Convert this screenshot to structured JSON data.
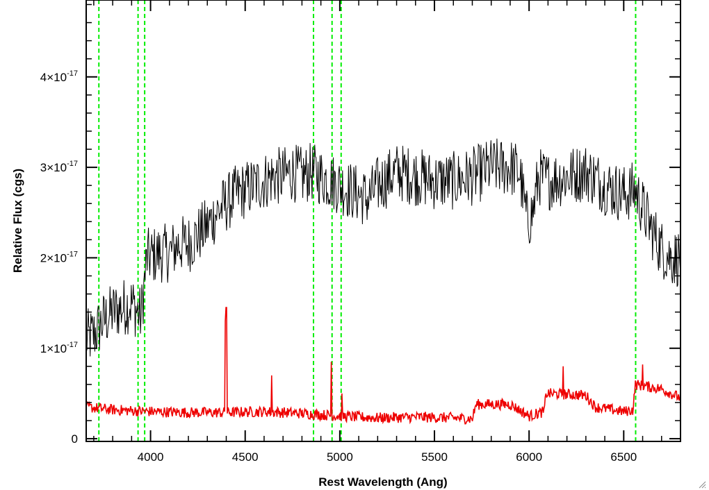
{
  "chart_data": {
    "type": "line",
    "title": "",
    "xlabel": "Rest Wavelength (Ang)",
    "ylabel": "Relative Flux (cgs)",
    "xlim": [
      3660,
      6800
    ],
    "ylim": [
      -0.03,
      4.85
    ],
    "y_unit_note": "values in units of 1e-17",
    "x_ticks": [
      4000,
      4500,
      5000,
      5500,
      6000,
      6500
    ],
    "x_tick_labels": [
      "4000",
      "4500",
      "5000",
      "5500",
      "6000",
      "6500"
    ],
    "y_ticks": [
      0,
      1,
      2,
      3,
      4
    ],
    "y_tick_labels": [
      {
        "base": "0",
        "exp": ""
      },
      {
        "base": "1×10",
        "exp": "-17"
      },
      {
        "base": "2×10",
        "exp": "-17"
      },
      {
        "base": "3×10",
        "exp": "-17"
      },
      {
        "base": "4×10",
        "exp": "-17"
      }
    ],
    "grid": false,
    "reference_lines": {
      "color": "#00ee00",
      "style": "dashed",
      "x": [
        3727,
        3934,
        3969,
        4861,
        4959,
        5007,
        6563
      ]
    },
    "series": [
      {
        "color": "#000000",
        "points": [
          [
            3660,
            1.1
          ],
          [
            3700,
            1.15
          ],
          [
            3750,
            1.3
          ],
          [
            3800,
            1.4
          ],
          [
            3850,
            1.45
          ],
          [
            3900,
            1.5
          ],
          [
            3950,
            1.35
          ],
          [
            3980,
            2.0
          ],
          [
            4050,
            2.05
          ],
          [
            4100,
            2.05
          ],
          [
            4150,
            2.15
          ],
          [
            4200,
            2.15
          ],
          [
            4250,
            2.25
          ],
          [
            4300,
            2.35
          ],
          [
            4350,
            2.5
          ],
          [
            4400,
            2.6
          ],
          [
            4450,
            2.7
          ],
          [
            4500,
            2.75
          ],
          [
            4550,
            2.8
          ],
          [
            4600,
            2.85
          ],
          [
            4650,
            2.9
          ],
          [
            4700,
            2.9
          ],
          [
            4750,
            2.95
          ],
          [
            4800,
            2.9
          ],
          [
            4850,
            2.95
          ],
          [
            4900,
            2.9
          ],
          [
            4950,
            2.85
          ],
          [
            5000,
            2.8
          ],
          [
            5050,
            2.75
          ],
          [
            5100,
            2.7
          ],
          [
            5150,
            2.65
          ],
          [
            5200,
            2.8
          ],
          [
            5300,
            2.95
          ],
          [
            5400,
            2.9
          ],
          [
            5500,
            2.85
          ],
          [
            5600,
            2.85
          ],
          [
            5700,
            2.9
          ],
          [
            5800,
            3.0
          ],
          [
            5900,
            3.0
          ],
          [
            5950,
            2.95
          ],
          [
            5990,
            2.4
          ],
          [
            6020,
            2.5
          ],
          [
            6050,
            2.9
          ],
          [
            6100,
            2.85
          ],
          [
            6200,
            2.9
          ],
          [
            6300,
            2.95
          ],
          [
            6400,
            2.8
          ],
          [
            6500,
            2.7
          ],
          [
            6560,
            2.75
          ],
          [
            6600,
            2.55
          ],
          [
            6650,
            2.3
          ],
          [
            6700,
            2.1
          ],
          [
            6750,
            2.0
          ],
          [
            6800,
            2.0
          ]
        ],
        "noise": 0.33
      },
      {
        "color": "#ee0000",
        "points": [
          [
            3660,
            0.35
          ],
          [
            3800,
            0.32
          ],
          [
            4000,
            0.3
          ],
          [
            4200,
            0.29
          ],
          [
            4400,
            0.29
          ],
          [
            4600,
            0.3
          ],
          [
            4800,
            0.28
          ],
          [
            5000,
            0.25
          ],
          [
            5200,
            0.23
          ],
          [
            5400,
            0.24
          ],
          [
            5600,
            0.23
          ],
          [
            5700,
            0.22
          ],
          [
            5720,
            0.38
          ],
          [
            5900,
            0.38
          ],
          [
            6000,
            0.25
          ],
          [
            6080,
            0.3
          ],
          [
            6090,
            0.5
          ],
          [
            6300,
            0.48
          ],
          [
            6350,
            0.35
          ],
          [
            6500,
            0.3
          ],
          [
            6550,
            0.32
          ],
          [
            6560,
            0.6
          ],
          [
            6700,
            0.55
          ],
          [
            6800,
            0.45
          ]
        ],
        "noise": 0.06,
        "spikes": [
          [
            4395,
            1.3
          ],
          [
            4400,
            1.45
          ],
          [
            4640,
            0.7
          ],
          [
            4955,
            0.85
          ],
          [
            5010,
            0.5
          ],
          [
            6180,
            0.8
          ],
          [
            6600,
            0.82
          ]
        ]
      }
    ]
  }
}
